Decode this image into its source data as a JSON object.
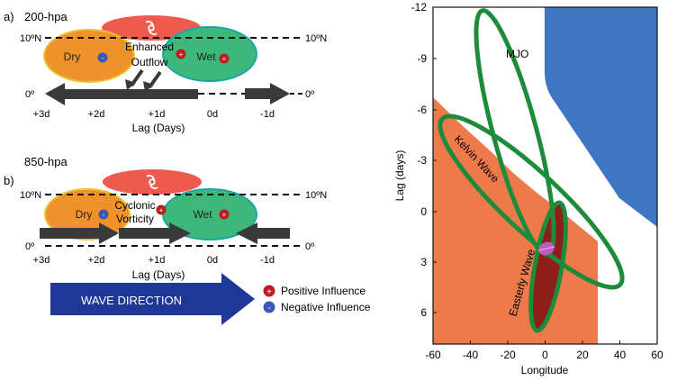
{
  "panel_a": {
    "letter": "a)",
    "level": "200-hpa",
    "lat_left": "10ºN",
    "lat_right": "10ºN",
    "eq_left": "0º",
    "eq_right": "0º",
    "dry_label": "Dry",
    "wet_label": "Wet",
    "enhanced_line1": "Enhanced",
    "enhanced_line2": "Outflow",
    "ticks": [
      "+3d",
      "+2d",
      "+1d",
      "0d",
      "-1d"
    ],
    "axis_label": "Lag (Days)"
  },
  "panel_b": {
    "letter": "b)",
    "level": "850-hpa",
    "lat_left": "10ºN",
    "lat_right": "10ºN",
    "eq_left": "0º",
    "eq_right": "0º",
    "dry_label": "Dry",
    "wet_label": "Wet",
    "cyclonic_line1": "Cyclonic",
    "cyclonic_line2": "Vorticity",
    "ticks": [
      "+3d",
      "+2d",
      "+1d",
      "0d",
      "-1d"
    ],
    "axis_label": "Lag (Days)"
  },
  "wave_direction": "WAVE DIRECTION",
  "legend": {
    "positive": "Positive Influence",
    "negative": "Negative Influence",
    "plus_symbol": "+",
    "minus_symbol": "-"
  },
  "right_chart": {
    "x_ticks": [
      "-60",
      "-40",
      "-20",
      "0",
      "20",
      "40",
      "60"
    ],
    "y_ticks": [
      "-12",
      "-9",
      "-6",
      "-3",
      "0",
      "3",
      "6"
    ],
    "xlabel": "Longitude",
    "ylabel": "Lag (days)",
    "mjo_label": "MJO",
    "kelvin_label": "Kelvin Wave",
    "easterly_label": "Easterly Wave"
  },
  "colors": {
    "dry": "#F0922A",
    "wet": "#3DB87A",
    "tropical_cyclone": "#EE5A4E",
    "arrow": "#3A3A3A",
    "wave_arrow": "#1E3799",
    "blue_region": "#3F76C2",
    "orange_region": "#EE7A4C",
    "wave_outline": "#1D8C3A",
    "easterly_fill": "#8E1E1A",
    "center_marker": "#C05AC0"
  }
}
